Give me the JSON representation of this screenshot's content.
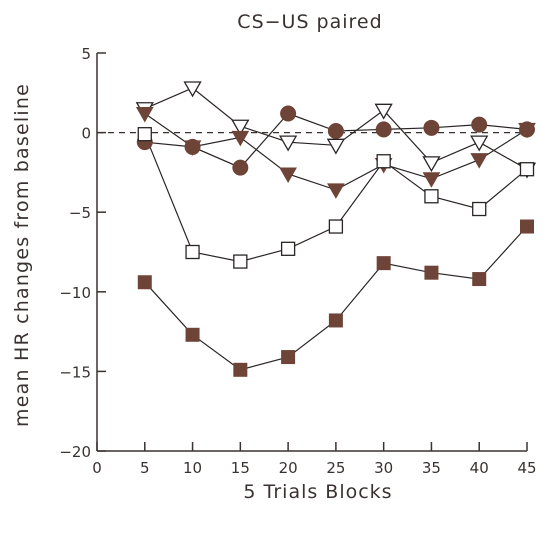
{
  "chart_data": {
    "type": "line",
    "title": "CS−US paired",
    "xlabel": "5 Trials Blocks",
    "ylabel": "mean HR changes from baseline",
    "xlim": [
      0,
      45
    ],
    "ylim": [
      -20,
      5
    ],
    "x_ticks": [
      "0",
      "5",
      "10",
      "15",
      "20",
      "25",
      "30",
      "35",
      "40",
      "45"
    ],
    "y_ticks": [
      "5",
      "0",
      "−5",
      "−10",
      "−15",
      "−20"
    ],
    "x_tick_values": [
      0,
      5,
      10,
      15,
      20,
      25,
      30,
      35,
      40,
      45
    ],
    "y_tick_values": [
      5,
      0,
      -5,
      -10,
      -15,
      -20
    ],
    "baseline": 0,
    "x": [
      5,
      10,
      15,
      20,
      25,
      30,
      35,
      40,
      45
    ],
    "series": [
      {
        "marker": "filled-circle",
        "values": [
          -0.6,
          -0.9,
          -2.2,
          1.2,
          0.1,
          0.2,
          0.3,
          0.5,
          0.2
        ]
      },
      {
        "marker": "open-triangle-down",
        "values": [
          1.5,
          2.8,
          0.4,
          -0.6,
          -0.8,
          1.4,
          -1.9,
          -0.6,
          -2.3
        ]
      },
      {
        "marker": "filled-triangle-down",
        "values": [
          1.2,
          -0.9,
          -0.3,
          -2.6,
          -3.6,
          -2.0,
          -2.9,
          -1.7,
          0.2
        ]
      },
      {
        "marker": "open-square",
        "values": [
          -0.1,
          -7.5,
          -8.1,
          -7.3,
          -5.9,
          -1.8,
          -4.0,
          -4.8,
          -2.3
        ]
      },
      {
        "marker": "filled-square",
        "values": [
          -9.4,
          -12.7,
          -14.9,
          -14.1,
          -11.8,
          -8.2,
          -8.8,
          -9.2,
          -5.9
        ]
      }
    ],
    "colors": {
      "marker": "#6e4438",
      "line": "#2a2524",
      "axis": "#3a3230",
      "background": "#ffffff"
    }
  }
}
